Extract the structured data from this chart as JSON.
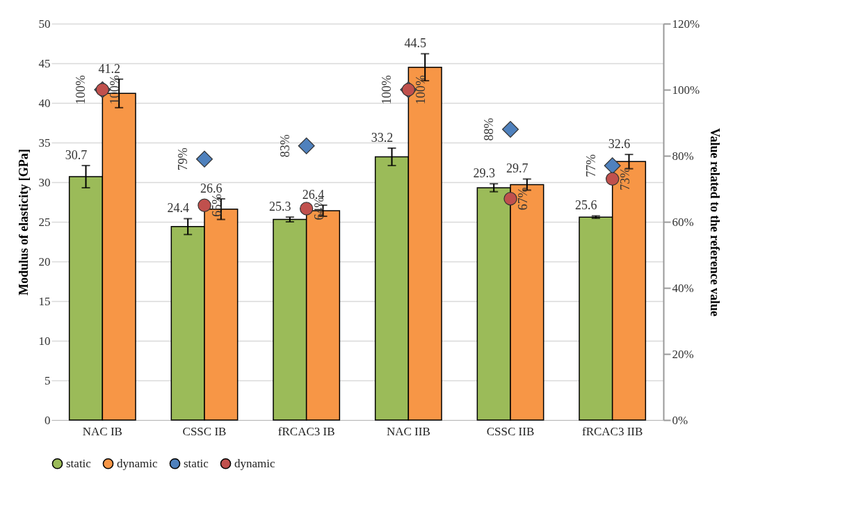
{
  "chart_data": {
    "type": "bar",
    "categories": [
      "NAC IB",
      "CSSC IB",
      "fRCAC3 IB",
      "NAC IIB",
      "CSSC IIB",
      "fRCAC3 IIB"
    ],
    "ylabel": "Modulus of elasticity [GPa]",
    "y2label": "Value related to the reference value",
    "ylim": [
      0,
      50
    ],
    "yticks": [
      0,
      5,
      10,
      15,
      20,
      25,
      30,
      35,
      40,
      45,
      50
    ],
    "y2lim": [
      0,
      120
    ],
    "y2ticks": [
      {
        "value": 0,
        "label": "0%"
      },
      {
        "value": 20,
        "label": "20%"
      },
      {
        "value": 40,
        "label": "40%"
      },
      {
        "value": 60,
        "label": "60%"
      },
      {
        "value": 80,
        "label": "80%"
      },
      {
        "value": 100,
        "label": "100%"
      },
      {
        "value": 120,
        "label": "120%"
      }
    ],
    "grid": "y",
    "legend": "bottom",
    "series": [
      {
        "name": "static",
        "type": "bar",
        "color": "#9bbb59",
        "marker": "square",
        "values": [
          30.7,
          24.4,
          25.3,
          33.2,
          29.3,
          25.6
        ],
        "errors": [
          1.4,
          1.0,
          0.3,
          1.1,
          0.5,
          0.15
        ],
        "value_labels": [
          "30.7",
          "24.4",
          "25.3",
          "33.2",
          "29.3",
          "25.6"
        ]
      },
      {
        "name": "dynamic",
        "type": "bar",
        "color": "#f79646",
        "marker": "square",
        "values": [
          41.2,
          26.6,
          26.4,
          44.5,
          29.7,
          32.6
        ],
        "errors": [
          1.8,
          1.3,
          0.7,
          1.7,
          0.7,
          0.9
        ],
        "value_labels": [
          "41.2",
          "26.6",
          "26.4",
          "44.5",
          "29.7",
          "32.6"
        ]
      },
      {
        "name": "static",
        "type": "scatter",
        "axis": "y2",
        "color": "#4f81bd",
        "marker": "diamond",
        "values": [
          100,
          79,
          83,
          100,
          88,
          77
        ],
        "value_labels": [
          "100%",
          "79%",
          "83%",
          "100%",
          "88%",
          "77%"
        ]
      },
      {
        "name": "dynamic",
        "type": "scatter",
        "axis": "y2",
        "color": "#c0504d",
        "marker": "circle",
        "values": [
          100,
          65,
          64,
          100,
          67,
          73
        ],
        "value_labels": [
          "100%",
          "65%",
          "64%",
          "100%",
          "67%",
          "73%"
        ]
      }
    ]
  }
}
